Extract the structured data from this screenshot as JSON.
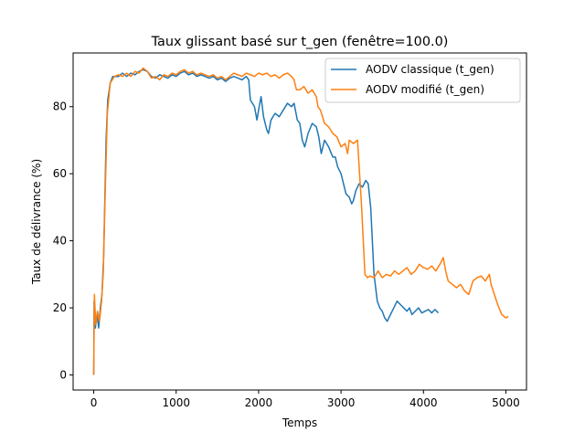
{
  "chart_data": {
    "type": "line",
    "title": "Taux glissant basé sur t_gen (fenêtre=100.0)",
    "xlabel": "Temps",
    "ylabel": "Taux de délivrance (%)",
    "xlim": [
      -250,
      5250
    ],
    "ylim": [
      -4.5,
      96
    ],
    "xticks": [
      0,
      1000,
      2000,
      3000,
      4000,
      5000
    ],
    "yticks": [
      0,
      20,
      40,
      60,
      80
    ],
    "grid": false,
    "legend_position": "top-right",
    "series": [
      {
        "name": "AODV classique (t_gen)",
        "color": "#1f77b4",
        "points": [
          [
            0,
            0
          ],
          [
            5,
            22
          ],
          [
            20,
            14
          ],
          [
            40,
            18
          ],
          [
            60,
            14
          ],
          [
            80,
            20
          ],
          [
            100,
            24
          ],
          [
            120,
            35
          ],
          [
            150,
            70
          ],
          [
            170,
            82
          ],
          [
            200,
            87
          ],
          [
            230,
            89
          ],
          [
            300,
            89
          ],
          [
            350,
            90
          ],
          [
            400,
            89
          ],
          [
            450,
            90
          ],
          [
            500,
            89.5
          ],
          [
            550,
            90.5
          ],
          [
            600,
            91
          ],
          [
            650,
            90.5
          ],
          [
            700,
            89
          ],
          [
            750,
            88.5
          ],
          [
            800,
            89.5
          ],
          [
            850,
            89
          ],
          [
            900,
            88.5
          ],
          [
            950,
            89.5
          ],
          [
            1000,
            89
          ],
          [
            1050,
            90
          ],
          [
            1100,
            90.5
          ],
          [
            1150,
            89.5
          ],
          [
            1200,
            90
          ],
          [
            1250,
            89
          ],
          [
            1300,
            89.5
          ],
          [
            1350,
            89
          ],
          [
            1400,
            88.5
          ],
          [
            1450,
            89
          ],
          [
            1500,
            88
          ],
          [
            1550,
            88.5
          ],
          [
            1600,
            87.5
          ],
          [
            1650,
            88.5
          ],
          [
            1700,
            89
          ],
          [
            1750,
            88.5
          ],
          [
            1800,
            88
          ],
          [
            1850,
            89
          ],
          [
            1880,
            88
          ],
          [
            1900,
            82
          ],
          [
            1950,
            80
          ],
          [
            1980,
            76
          ],
          [
            2000,
            79
          ],
          [
            2030,
            83
          ],
          [
            2060,
            77
          ],
          [
            2100,
            73
          ],
          [
            2120,
            72
          ],
          [
            2150,
            76
          ],
          [
            2200,
            78
          ],
          [
            2250,
            77
          ],
          [
            2300,
            79
          ],
          [
            2350,
            81
          ],
          [
            2400,
            80
          ],
          [
            2430,
            81
          ],
          [
            2470,
            76
          ],
          [
            2500,
            75
          ],
          [
            2530,
            70
          ],
          [
            2560,
            68
          ],
          [
            2600,
            72
          ],
          [
            2650,
            75
          ],
          [
            2700,
            74
          ],
          [
            2730,
            71
          ],
          [
            2760,
            66
          ],
          [
            2800,
            70
          ],
          [
            2850,
            68
          ],
          [
            2900,
            65
          ],
          [
            2930,
            65
          ],
          [
            2960,
            62
          ],
          [
            3000,
            60
          ],
          [
            3030,
            57
          ],
          [
            3060,
            54
          ],
          [
            3100,
            53
          ],
          [
            3130,
            51
          ],
          [
            3150,
            52
          ],
          [
            3180,
            55
          ],
          [
            3220,
            57
          ],
          [
            3260,
            56
          ],
          [
            3300,
            58
          ],
          [
            3330,
            57
          ],
          [
            3360,
            50
          ],
          [
            3380,
            40
          ],
          [
            3400,
            30
          ],
          [
            3420,
            26
          ],
          [
            3440,
            22
          ],
          [
            3470,
            20
          ],
          [
            3500,
            19
          ],
          [
            3530,
            17
          ],
          [
            3560,
            16
          ],
          [
            3600,
            18
          ],
          [
            3640,
            20
          ],
          [
            3680,
            22
          ],
          [
            3720,
            21
          ],
          [
            3760,
            20
          ],
          [
            3800,
            19
          ],
          [
            3830,
            20
          ],
          [
            3860,
            18
          ],
          [
            3900,
            19
          ],
          [
            3940,
            20
          ],
          [
            3980,
            18.5
          ],
          [
            4020,
            19
          ],
          [
            4060,
            19.5
          ],
          [
            4100,
            18.5
          ],
          [
            4140,
            19.5
          ],
          [
            4180,
            18.5
          ]
        ]
      },
      {
        "name": "AODV modifié (t_gen)",
        "color": "#ff7f0e",
        "points": [
          [
            0,
            0
          ],
          [
            8,
            24
          ],
          [
            25,
            15
          ],
          [
            45,
            19
          ],
          [
            70,
            16
          ],
          [
            95,
            22
          ],
          [
            115,
            30
          ],
          [
            140,
            55
          ],
          [
            165,
            78
          ],
          [
            200,
            87
          ],
          [
            250,
            89
          ],
          [
            300,
            89.5
          ],
          [
            350,
            89
          ],
          [
            400,
            90
          ],
          [
            450,
            89
          ],
          [
            500,
            90.5
          ],
          [
            550,
            90
          ],
          [
            600,
            91.5
          ],
          [
            650,
            90.5
          ],
          [
            700,
            88.5
          ],
          [
            750,
            89
          ],
          [
            800,
            88
          ],
          [
            850,
            89.5
          ],
          [
            900,
            89
          ],
          [
            950,
            90
          ],
          [
            1000,
            89.5
          ],
          [
            1050,
            90.5
          ],
          [
            1100,
            91
          ],
          [
            1150,
            90
          ],
          [
            1200,
            90.5
          ],
          [
            1250,
            89.5
          ],
          [
            1300,
            90
          ],
          [
            1350,
            89.5
          ],
          [
            1400,
            89
          ],
          [
            1450,
            89.5
          ],
          [
            1500,
            88.5
          ],
          [
            1550,
            89
          ],
          [
            1600,
            88
          ],
          [
            1650,
            89
          ],
          [
            1700,
            90
          ],
          [
            1750,
            89.5
          ],
          [
            1800,
            89
          ],
          [
            1850,
            90
          ],
          [
            1900,
            89.5
          ],
          [
            1950,
            89
          ],
          [
            2000,
            90
          ],
          [
            2050,
            89.5
          ],
          [
            2100,
            90
          ],
          [
            2150,
            89
          ],
          [
            2200,
            89.5
          ],
          [
            2250,
            88.5
          ],
          [
            2300,
            89.5
          ],
          [
            2350,
            90
          ],
          [
            2400,
            89
          ],
          [
            2430,
            88
          ],
          [
            2460,
            85
          ],
          [
            2500,
            85
          ],
          [
            2550,
            86
          ],
          [
            2600,
            84
          ],
          [
            2650,
            85
          ],
          [
            2700,
            83
          ],
          [
            2720,
            80
          ],
          [
            2750,
            79
          ],
          [
            2800,
            75
          ],
          [
            2850,
            74
          ],
          [
            2900,
            72
          ],
          [
            2950,
            71
          ],
          [
            3000,
            68
          ],
          [
            3050,
            69
          ],
          [
            3080,
            66
          ],
          [
            3100,
            70
          ],
          [
            3150,
            69
          ],
          [
            3200,
            70
          ],
          [
            3220,
            62
          ],
          [
            3250,
            50
          ],
          [
            3270,
            40
          ],
          [
            3290,
            30
          ],
          [
            3320,
            29
          ],
          [
            3350,
            29.5
          ],
          [
            3400,
            29
          ],
          [
            3450,
            31
          ],
          [
            3500,
            29
          ],
          [
            3550,
            30
          ],
          [
            3600,
            29.5
          ],
          [
            3650,
            31
          ],
          [
            3700,
            30
          ],
          [
            3750,
            31
          ],
          [
            3800,
            32
          ],
          [
            3850,
            30
          ],
          [
            3900,
            31
          ],
          [
            3950,
            33
          ],
          [
            4000,
            32
          ],
          [
            4050,
            31.5
          ],
          [
            4100,
            32.5
          ],
          [
            4150,
            31
          ],
          [
            4200,
            33
          ],
          [
            4240,
            35
          ],
          [
            4270,
            31
          ],
          [
            4300,
            28
          ],
          [
            4350,
            27
          ],
          [
            4400,
            26
          ],
          [
            4450,
            27
          ],
          [
            4500,
            25
          ],
          [
            4550,
            24
          ],
          [
            4600,
            28
          ],
          [
            4650,
            29
          ],
          [
            4700,
            29.5
          ],
          [
            4750,
            28
          ],
          [
            4800,
            30
          ],
          [
            4820,
            27
          ],
          [
            4860,
            24
          ],
          [
            4900,
            21
          ],
          [
            4950,
            18
          ],
          [
            5000,
            17
          ],
          [
            5030,
            17.5
          ]
        ]
      }
    ]
  }
}
